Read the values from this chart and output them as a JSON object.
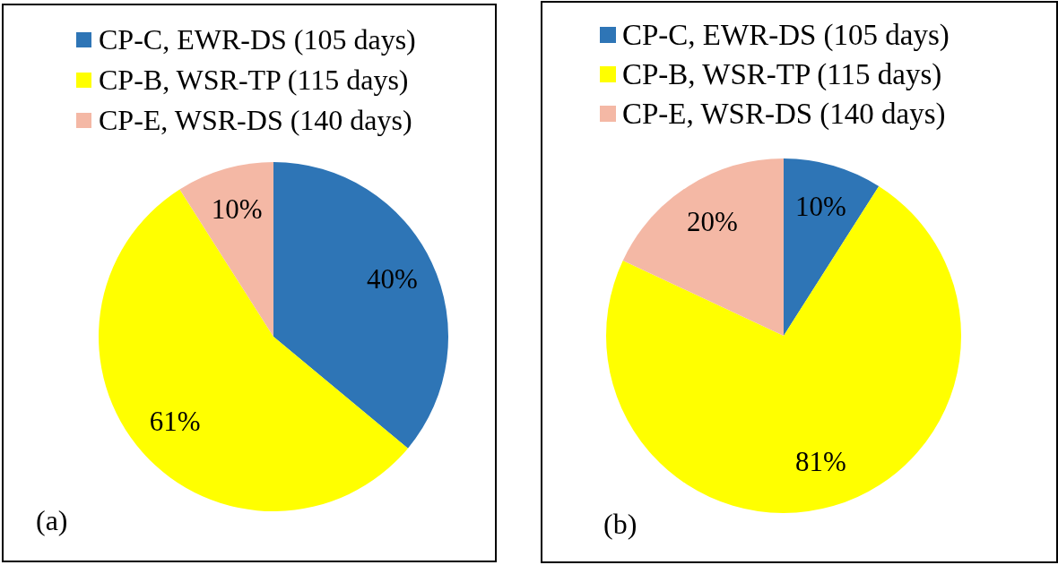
{
  "chart_data": [
    {
      "type": "pie",
      "categories": [
        "CP-C, EWR-DS (105 days)",
        "CP-B, WSR-TP (115 days)",
        "CP-E, WSR-DS (140 days)"
      ],
      "values": [
        40,
        61,
        10
      ],
      "colors": [
        "#2e75b6",
        "#ffff00",
        "#f4b8a5"
      ],
      "value_labels": [
        "40%",
        "61%",
        "10%"
      ],
      "legend": "top",
      "annotations": [
        "(a)"
      ]
    },
    {
      "type": "pie",
      "categories": [
        "CP-C, EWR-DS (105 days)",
        "CP-B, WSR-TP (115 days)",
        "CP-E, WSR-DS (140 days)"
      ],
      "values": [
        10,
        81,
        20
      ],
      "colors": [
        "#2e75b6",
        "#ffff00",
        "#f4b8a5"
      ],
      "value_labels": [
        "10%",
        "81%",
        "20%"
      ],
      "legend": "top",
      "annotations": [
        "(b)"
      ]
    }
  ]
}
